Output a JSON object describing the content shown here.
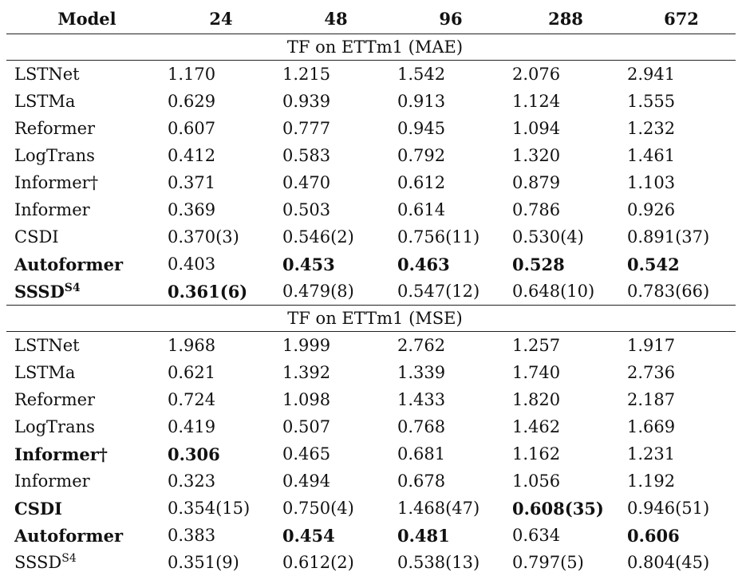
{
  "header": {
    "model": "Model",
    "cols": [
      "24",
      "48",
      "96",
      "288",
      "672"
    ]
  },
  "sections": [
    {
      "title": "TF on ETTm1 (MAE)",
      "rows": [
        {
          "model": "LSTNet",
          "model_bold": false,
          "sup": "",
          "values": [
            "1.170",
            "1.215",
            "1.542",
            "2.076",
            "2.941"
          ],
          "bold": [
            false,
            false,
            false,
            false,
            false
          ]
        },
        {
          "model": "LSTMa",
          "model_bold": false,
          "sup": "",
          "values": [
            "0.629",
            "0.939",
            "0.913",
            "1.124",
            "1.555"
          ],
          "bold": [
            false,
            false,
            false,
            false,
            false
          ]
        },
        {
          "model": "Reformer",
          "model_bold": false,
          "sup": "",
          "values": [
            "0.607",
            "0.777",
            "0.945",
            "1.094",
            "1.232"
          ],
          "bold": [
            false,
            false,
            false,
            false,
            false
          ]
        },
        {
          "model": "LogTrans",
          "model_bold": false,
          "sup": "",
          "values": [
            "0.412",
            "0.583",
            "0.792",
            "1.320",
            "1.461"
          ],
          "bold": [
            false,
            false,
            false,
            false,
            false
          ]
        },
        {
          "model": "Informer†",
          "model_bold": false,
          "sup": "",
          "values": [
            "0.371",
            "0.470",
            "0.612",
            "0.879",
            "1.103"
          ],
          "bold": [
            false,
            false,
            false,
            false,
            false
          ]
        },
        {
          "model": "Informer",
          "model_bold": false,
          "sup": "",
          "values": [
            "0.369",
            "0.503",
            "0.614",
            "0.786",
            "0.926"
          ],
          "bold": [
            false,
            false,
            false,
            false,
            false
          ]
        },
        {
          "model": "CSDI",
          "model_bold": false,
          "sup": "",
          "values": [
            "0.370(3)",
            "0.546(2)",
            "0.756(11)",
            "0.530(4)",
            "0.891(37)"
          ],
          "bold": [
            false,
            false,
            false,
            false,
            false
          ]
        },
        {
          "model": "Autoformer",
          "model_bold": true,
          "sup": "",
          "values": [
            "0.403",
            "0.453",
            "0.463",
            "0.528",
            "0.542"
          ],
          "bold": [
            false,
            true,
            true,
            true,
            true
          ]
        },
        {
          "model": "SSSD",
          "model_bold": true,
          "sup": "S4",
          "values": [
            "0.361(6)",
            "0.479(8)",
            "0.547(12)",
            "0.648(10)",
            "0.783(66)"
          ],
          "bold": [
            true,
            false,
            false,
            false,
            false
          ]
        }
      ]
    },
    {
      "title": "TF on ETTm1 (MSE)",
      "rows": [
        {
          "model": "LSTNet",
          "model_bold": false,
          "sup": "",
          "values": [
            "1.968",
            "1.999",
            "2.762",
            "1.257",
            "1.917"
          ],
          "bold": [
            false,
            false,
            false,
            false,
            false
          ]
        },
        {
          "model": "LSTMa",
          "model_bold": false,
          "sup": "",
          "values": [
            "0.621",
            "1.392",
            "1.339",
            "1.740",
            "2.736"
          ],
          "bold": [
            false,
            false,
            false,
            false,
            false
          ]
        },
        {
          "model": "Reformer",
          "model_bold": false,
          "sup": "",
          "values": [
            "0.724",
            "1.098",
            "1.433",
            "1.820",
            "2.187"
          ],
          "bold": [
            false,
            false,
            false,
            false,
            false
          ]
        },
        {
          "model": "LogTrans",
          "model_bold": false,
          "sup": "",
          "values": [
            "0.419",
            "0.507",
            "0.768",
            "1.462",
            "1.669"
          ],
          "bold": [
            false,
            false,
            false,
            false,
            false
          ]
        },
        {
          "model": "Informer†",
          "model_bold": true,
          "sup": "",
          "values": [
            "0.306",
            "0.465",
            "0.681",
            "1.162",
            "1.231"
          ],
          "bold": [
            true,
            false,
            false,
            false,
            false
          ]
        },
        {
          "model": "Informer",
          "model_bold": false,
          "sup": "",
          "values": [
            "0.323",
            "0.494",
            "0.678",
            "1.056",
            "1.192"
          ],
          "bold": [
            false,
            false,
            false,
            false,
            false
          ]
        },
        {
          "model": "CSDI",
          "model_bold": true,
          "sup": "",
          "values": [
            "0.354(15)",
            "0.750(4)",
            "1.468(47)",
            "0.608(35)",
            "0.946(51)"
          ],
          "bold": [
            false,
            false,
            false,
            true,
            false
          ]
        },
        {
          "model": "Autoformer",
          "model_bold": true,
          "sup": "",
          "values": [
            "0.383",
            "0.454",
            "0.481",
            "0.634",
            "0.606"
          ],
          "bold": [
            false,
            true,
            true,
            false,
            true
          ]
        },
        {
          "model": "SSSD",
          "model_bold": false,
          "sup": "S4",
          "values": [
            "0.351(9)",
            "0.612(2)",
            "0.538(13)",
            "0.797(5)",
            "0.804(45)"
          ],
          "bold": [
            false,
            false,
            false,
            false,
            false
          ]
        }
      ]
    }
  ]
}
